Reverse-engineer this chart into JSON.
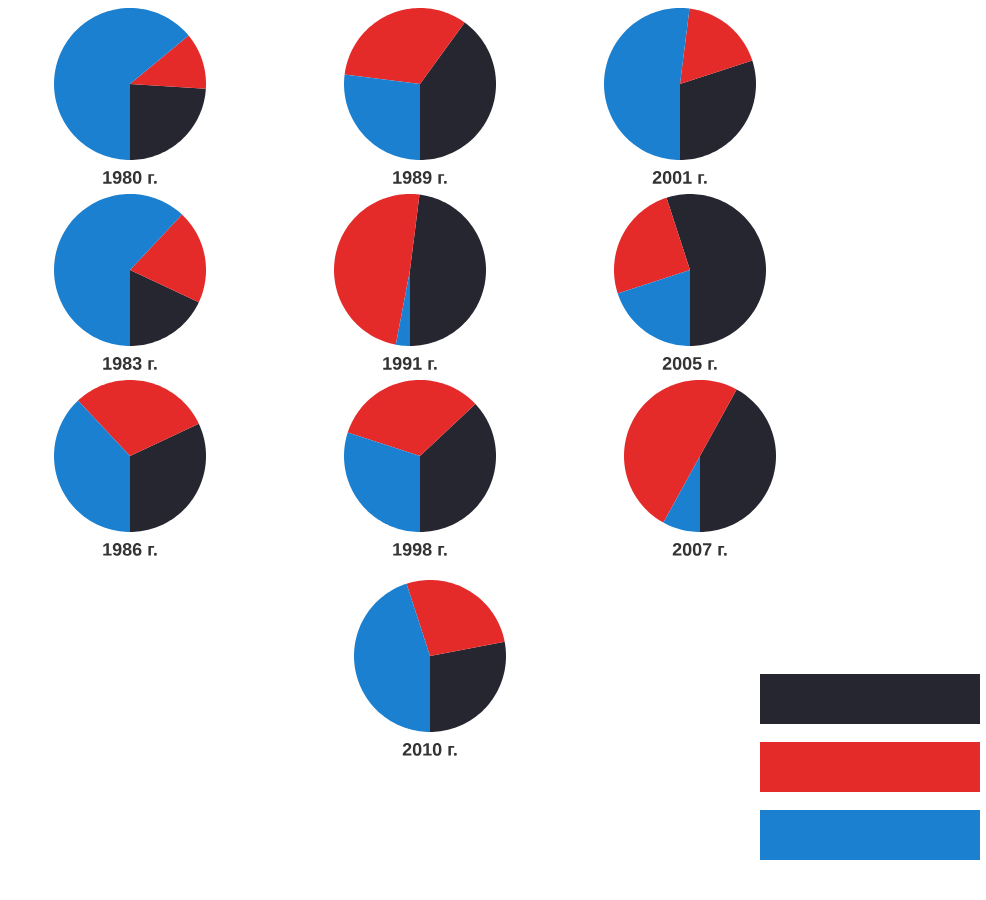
{
  "chart_data": [
    {
      "type": "pie",
      "title": "1980 г.",
      "categories": [
        null,
        null,
        null
      ],
      "values": [
        24,
        12,
        64
      ],
      "colors": [
        "#262630",
        "#e52a2a",
        "#1b80d0"
      ]
    },
    {
      "type": "pie",
      "title": "1989 г.",
      "categories": [
        null,
        null,
        null
      ],
      "values": [
        40,
        33,
        27
      ],
      "colors": [
        "#262630",
        "#e52a2a",
        "#1b80d0"
      ]
    },
    {
      "type": "pie",
      "title": "2001 г.",
      "categories": [
        null,
        null,
        null
      ],
      "values": [
        30,
        18,
        52
      ],
      "colors": [
        "#262630",
        "#e52a2a",
        "#1b80d0"
      ]
    },
    {
      "type": "pie",
      "title": "1983 г.",
      "categories": [
        null,
        null,
        null
      ],
      "values": [
        18,
        20,
        62
      ],
      "colors": [
        "#262630",
        "#e52a2a",
        "#1b80d0"
      ]
    },
    {
      "type": "pie",
      "title": "1991 г.",
      "categories": [
        null,
        null,
        null
      ],
      "values": [
        48,
        49,
        3
      ],
      "colors": [
        "#262630",
        "#e52a2a",
        "#1b80d0"
      ]
    },
    {
      "type": "pie",
      "title": "2005 г.",
      "categories": [
        null,
        null,
        null
      ],
      "values": [
        55,
        25,
        20
      ],
      "colors": [
        "#262630",
        "#e52a2a",
        "#1b80d0"
      ]
    },
    {
      "type": "pie",
      "title": "1986 г.",
      "categories": [
        null,
        null,
        null
      ],
      "values": [
        32,
        30,
        38
      ],
      "colors": [
        "#262630",
        "#e52a2a",
        "#1b80d0"
      ]
    },
    {
      "type": "pie",
      "title": "1998 г.",
      "categories": [
        null,
        null,
        null
      ],
      "values": [
        37,
        33,
        30
      ],
      "colors": [
        "#262630",
        "#e52a2a",
        "#1b80d0"
      ]
    },
    {
      "type": "pie",
      "title": "2007 г.",
      "categories": [
        null,
        null,
        null
      ],
      "values": [
        42,
        50,
        8
      ],
      "colors": [
        "#262630",
        "#e52a2a",
        "#1b80d0"
      ]
    },
    {
      "type": "pie",
      "title": "2010 г.",
      "categories": [
        null,
        null,
        null
      ],
      "values": [
        28,
        27,
        45
      ],
      "colors": [
        "#262630",
        "#e52a2a",
        "#1b80d0"
      ]
    }
  ]
}
